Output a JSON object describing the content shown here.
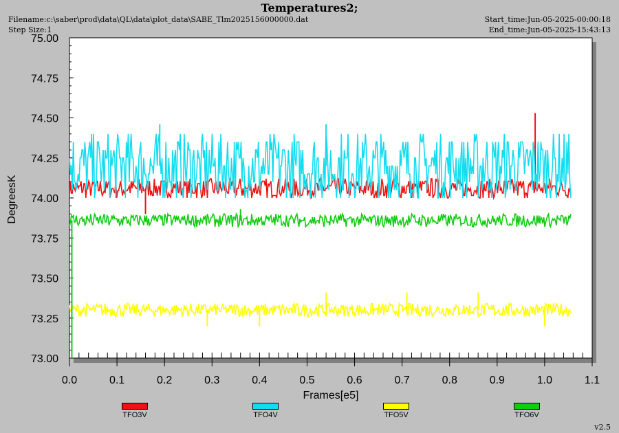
{
  "header": {
    "title": "Temperatures2;",
    "filename": "Filename:c:\\saber\\prod\\data\\QL\\data\\plot_data\\SABE_Tlm2025156000000.dat",
    "step_size": "Step Size:1",
    "start_time": "Start_time:Jun-05-2025-00:00:18",
    "end_time": "End_time:Jun-05-2025-15:43:13"
  },
  "version": "v2.5",
  "chart_data": {
    "type": "line",
    "title": "Temperatures2;",
    "xlabel": "Frames[e5]",
    "ylabel": "DegreesK",
    "xlim": [
      0.0,
      1.1
    ],
    "ylim": [
      73.0,
      75.0
    ],
    "x_ticks": [
      "0.0",
      "0.1",
      "0.2",
      "0.3",
      "0.4",
      "0.5",
      "0.6",
      "0.7",
      "0.8",
      "0.9",
      "1.0",
      "1.1"
    ],
    "y_ticks": [
      "73.00",
      "73.25",
      "73.50",
      "73.75",
      "74.00",
      "74.25",
      "74.50",
      "74.75",
      "75.00"
    ],
    "x_range_data": [
      0.0,
      1.055
    ],
    "legend_position": "bottom",
    "series": [
      {
        "name": "TFO3V",
        "color": "#ee1111",
        "base": 74.06,
        "spread": 0.06,
        "outliers": [
          [
            0.98,
            74.53
          ],
          [
            0.16,
            73.9
          ]
        ]
      },
      {
        "name": "TFO4V",
        "color": "#11ddf0",
        "base": 74.2,
        "spread": 0.2,
        "outliers": [
          [
            0.19,
            74.46
          ],
          [
            0.54,
            74.46
          ]
        ]
      },
      {
        "name": "TFO5V",
        "color": "#ffff00",
        "base": 73.3,
        "spread": 0.04,
        "outliers": [
          [
            0.54,
            73.41
          ],
          [
            0.71,
            73.41
          ],
          [
            0.86,
            73.41
          ],
          [
            0.29,
            73.2
          ],
          [
            0.4,
            73.2
          ],
          [
            1.0,
            73.2
          ]
        ]
      },
      {
        "name": "TFO6V",
        "color": "#11cc11",
        "base": 73.86,
        "spread": 0.04,
        "outliers": [
          [
            0.36,
            73.93
          ],
          [
            0.005,
            73.0
          ]
        ]
      }
    ]
  }
}
